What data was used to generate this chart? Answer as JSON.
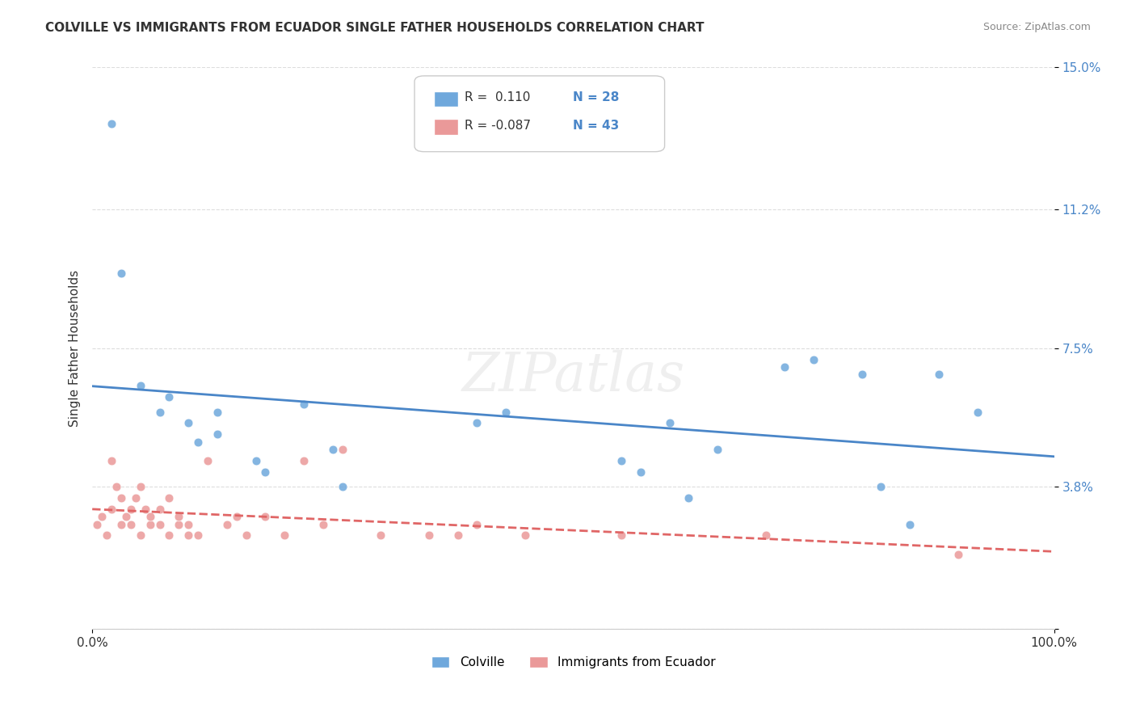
{
  "title": "COLVILLE VS IMMIGRANTS FROM ECUADOR SINGLE FATHER HOUSEHOLDS CORRELATION CHART",
  "source": "Source: ZipAtlas.com",
  "ylabel": "Single Father Households",
  "xlabel": "",
  "xlim": [
    0,
    100
  ],
  "ylim": [
    0,
    15.0
  ],
  "yticks": [
    0,
    3.8,
    7.5,
    11.2,
    15.0
  ],
  "xticks": [
    0,
    100
  ],
  "xticklabels": [
    "0.0%",
    "100.0%"
  ],
  "yticklabels": [
    "",
    "3.8%",
    "7.5%",
    "11.2%",
    "15.0%"
  ],
  "colville_R": "0.110",
  "colville_N": "28",
  "ecuador_R": "-0.087",
  "ecuador_N": "43",
  "colville_color": "#6fa8dc",
  "ecuador_color": "#ea9999",
  "colville_line_color": "#4a86c8",
  "ecuador_line_color": "#e06666",
  "background_color": "#ffffff",
  "grid_color": "#dddddd",
  "watermark": "ZIPatlas",
  "colville_scatter_x": [
    2,
    3,
    5,
    7,
    8,
    10,
    11,
    13,
    13,
    17,
    18,
    22,
    25,
    26,
    40,
    43,
    55,
    57,
    60,
    62,
    65,
    72,
    75,
    80,
    82,
    85,
    88,
    92
  ],
  "colville_scatter_y": [
    13.5,
    9.5,
    6.5,
    5.8,
    6.2,
    5.5,
    5.0,
    5.2,
    5.8,
    4.5,
    4.2,
    6.0,
    4.8,
    3.8,
    5.5,
    5.8,
    4.5,
    4.2,
    5.5,
    3.5,
    4.8,
    7.0,
    7.2,
    6.8,
    3.8,
    2.8,
    6.8,
    5.8
  ],
  "ecuador_scatter_x": [
    0.5,
    1,
    1.5,
    2,
    2,
    2.5,
    3,
    3,
    3.5,
    4,
    4,
    4.5,
    5,
    5,
    5.5,
    6,
    6,
    7,
    7,
    8,
    8,
    9,
    9,
    10,
    10,
    11,
    12,
    14,
    15,
    16,
    18,
    20,
    22,
    24,
    26,
    30,
    35,
    38,
    40,
    45,
    55,
    70,
    90
  ],
  "ecuador_scatter_y": [
    2.8,
    3.0,
    2.5,
    3.2,
    4.5,
    3.8,
    2.8,
    3.5,
    3.0,
    2.8,
    3.2,
    3.5,
    2.5,
    3.8,
    3.2,
    2.8,
    3.0,
    2.8,
    3.2,
    3.5,
    2.5,
    2.8,
    3.0,
    2.8,
    2.5,
    2.5,
    4.5,
    2.8,
    3.0,
    2.5,
    3.0,
    2.5,
    4.5,
    2.8,
    4.8,
    2.5,
    2.5,
    2.5,
    2.8,
    2.5,
    2.5,
    2.5,
    2.0
  ]
}
